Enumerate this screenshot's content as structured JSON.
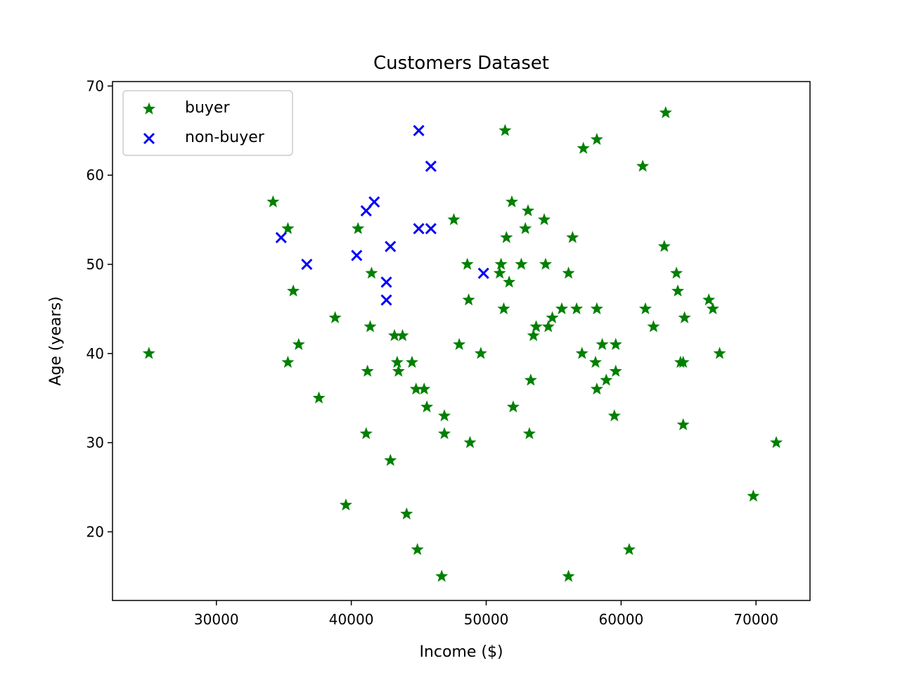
{
  "chart_data": {
    "type": "scatter",
    "title": "Customers Dataset",
    "xlabel": "Income ($)",
    "ylabel": "Age (years)",
    "xlim": [
      22300,
      74000
    ],
    "ylim": [
      12.3,
      70.5
    ],
    "xticks": [
      30000,
      40000,
      50000,
      60000,
      70000
    ],
    "yticks": [
      20,
      30,
      40,
      50,
      60,
      70
    ],
    "grid": false,
    "legend_position": "top-left",
    "series": [
      {
        "name": "buyer",
        "marker": "star",
        "color": "#008000",
        "points": [
          [
            25000,
            40
          ],
          [
            34200,
            57
          ],
          [
            35300,
            54
          ],
          [
            35300,
            39
          ],
          [
            35700,
            47
          ],
          [
            36100,
            41
          ],
          [
            37600,
            35
          ],
          [
            38800,
            44
          ],
          [
            39600,
            23
          ],
          [
            40500,
            54
          ],
          [
            41100,
            31
          ],
          [
            41200,
            38
          ],
          [
            41400,
            43
          ],
          [
            41500,
            49
          ],
          [
            42900,
            28
          ],
          [
            43200,
            42
          ],
          [
            43400,
            39
          ],
          [
            43500,
            38
          ],
          [
            43800,
            42
          ],
          [
            44100,
            22
          ],
          [
            44500,
            39
          ],
          [
            44800,
            36
          ],
          [
            44900,
            18
          ],
          [
            45400,
            36
          ],
          [
            45600,
            34
          ],
          [
            46700,
            15
          ],
          [
            46900,
            33
          ],
          [
            46900,
            31
          ],
          [
            47600,
            55
          ],
          [
            48000,
            41
          ],
          [
            48600,
            50
          ],
          [
            48700,
            46
          ],
          [
            48800,
            30
          ],
          [
            49600,
            40
          ],
          [
            51000,
            49
          ],
          [
            51100,
            50
          ],
          [
            51300,
            45
          ],
          [
            51400,
            65
          ],
          [
            51500,
            53
          ],
          [
            51700,
            48
          ],
          [
            51900,
            57
          ],
          [
            52000,
            34
          ],
          [
            52600,
            50
          ],
          [
            52900,
            54
          ],
          [
            53100,
            56
          ],
          [
            53200,
            31
          ],
          [
            53300,
            37
          ],
          [
            53500,
            42
          ],
          [
            53700,
            43
          ],
          [
            54300,
            55
          ],
          [
            54400,
            50
          ],
          [
            54600,
            43
          ],
          [
            54900,
            44
          ],
          [
            55600,
            45
          ],
          [
            56100,
            49
          ],
          [
            56100,
            15
          ],
          [
            56400,
            53
          ],
          [
            56700,
            45
          ],
          [
            57100,
            40
          ],
          [
            57200,
            63
          ],
          [
            58100,
            39
          ],
          [
            58200,
            36
          ],
          [
            58200,
            64
          ],
          [
            58200,
            45
          ],
          [
            58600,
            41
          ],
          [
            58900,
            37
          ],
          [
            59500,
            33
          ],
          [
            59600,
            38
          ],
          [
            59600,
            41
          ],
          [
            60600,
            18
          ],
          [
            61600,
            61
          ],
          [
            61800,
            45
          ],
          [
            62400,
            43
          ],
          [
            63200,
            52
          ],
          [
            63300,
            67
          ],
          [
            64100,
            49
          ],
          [
            64200,
            47
          ],
          [
            64400,
            39
          ],
          [
            64600,
            32
          ],
          [
            64600,
            39
          ],
          [
            64700,
            44
          ],
          [
            66500,
            46
          ],
          [
            66800,
            45
          ],
          [
            67300,
            40
          ],
          [
            69800,
            24
          ],
          [
            71500,
            30
          ]
        ]
      },
      {
        "name": "non-buyer",
        "marker": "x",
        "color": "#0000ff",
        "points": [
          [
            34800,
            53
          ],
          [
            36700,
            50
          ],
          [
            40400,
            51
          ],
          [
            41100,
            56
          ],
          [
            41700,
            57
          ],
          [
            42600,
            48
          ],
          [
            42600,
            46
          ],
          [
            42900,
            52
          ],
          [
            45000,
            65
          ],
          [
            45000,
            54
          ],
          [
            45900,
            61
          ],
          [
            45900,
            54
          ],
          [
            49800,
            49
          ]
        ]
      }
    ]
  }
}
